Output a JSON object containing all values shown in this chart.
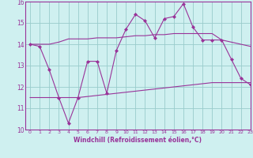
{
  "x": [
    0,
    1,
    2,
    3,
    4,
    5,
    6,
    7,
    8,
    9,
    10,
    11,
    12,
    13,
    14,
    15,
    16,
    17,
    18,
    19,
    20,
    21,
    22,
    23
  ],
  "main_line": [
    14.0,
    13.9,
    12.8,
    11.5,
    10.3,
    11.5,
    13.2,
    13.2,
    11.7,
    13.7,
    14.7,
    15.4,
    15.1,
    14.3,
    15.2,
    15.3,
    15.9,
    14.8,
    14.2,
    14.2,
    14.2,
    13.3,
    12.4,
    12.1
  ],
  "upper_line": [
    14.0,
    14.0,
    14.0,
    14.1,
    14.25,
    14.25,
    14.25,
    14.3,
    14.3,
    14.3,
    14.35,
    14.4,
    14.4,
    14.45,
    14.45,
    14.5,
    14.5,
    14.5,
    14.5,
    14.5,
    14.2,
    14.1,
    14.0,
    13.9
  ],
  "lower_line": [
    11.5,
    11.5,
    11.5,
    11.5,
    11.5,
    11.5,
    11.55,
    11.6,
    11.65,
    11.7,
    11.75,
    11.8,
    11.85,
    11.9,
    11.95,
    12.0,
    12.05,
    12.1,
    12.15,
    12.2,
    12.2,
    12.2,
    12.2,
    12.2
  ],
  "ylim": [
    10,
    16
  ],
  "xlim": [
    -0.5,
    23
  ],
  "xlabel": "Windchill (Refroidissement éolien,°C)",
  "bg_color": "#cff0f0",
  "line_color": "#993399",
  "grid_color": "#99cccc",
  "yticks": [
    10,
    11,
    12,
    13,
    14,
    15,
    16
  ],
  "xticks": [
    0,
    1,
    2,
    3,
    4,
    5,
    6,
    7,
    8,
    9,
    10,
    11,
    12,
    13,
    14,
    15,
    16,
    17,
    18,
    19,
    20,
    21,
    22,
    23
  ]
}
